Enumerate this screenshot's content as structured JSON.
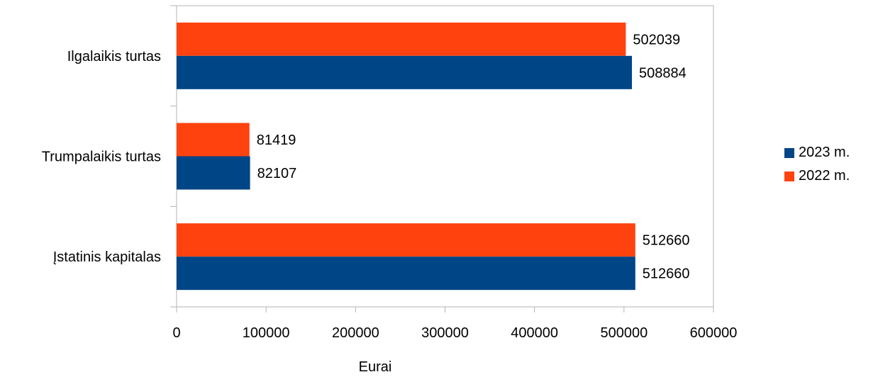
{
  "chart_data": {
    "type": "bar",
    "orientation": "horizontal",
    "title": "",
    "xlabel": "Eurai",
    "ylabel": "",
    "categories": [
      "Ilgalaikis turtas",
      "Trumpalaikis turtas",
      "Įstatinis kapitalas"
    ],
    "series": [
      {
        "name": "2023 m.",
        "color": "#004586",
        "values": [
          508884,
          82107,
          512660
        ]
      },
      {
        "name": "2022 m.",
        "color": "#ff420e",
        "values": [
          502039,
          81419,
          512660
        ]
      }
    ],
    "xlim": [
      0,
      600000
    ],
    "xticks": [
      "0",
      "100000",
      "200000",
      "300000",
      "400000",
      "500000",
      "600000"
    ],
    "grid": false,
    "legend_position": "right"
  }
}
